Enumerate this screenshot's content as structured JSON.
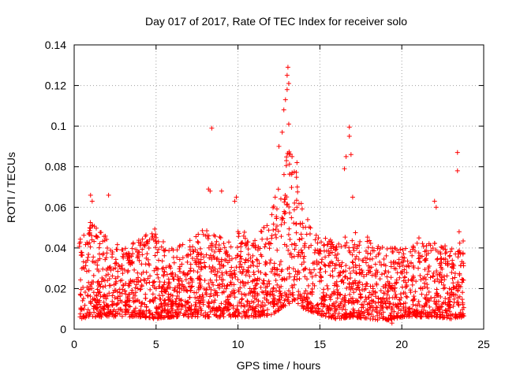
{
  "chart_data": {
    "type": "scatter",
    "title": "Day 017 of 2017, Rate Of TEC Index for receiver solo",
    "xlabel": "GPS time / hours",
    "ylabel": "ROTI / TECUs",
    "xlim": [
      0,
      25
    ],
    "ylim": [
      0,
      0.14
    ],
    "xticks": [
      "0",
      "5",
      "10",
      "15",
      "20",
      "25"
    ],
    "yticks": [
      "0",
      "0.02",
      "0.04",
      "0.06",
      "0.08",
      "0.1",
      "0.12",
      "0.14"
    ],
    "grid": true,
    "marker": "+",
    "color": "#ff0000",
    "series": [
      {
        "name": "ROTI",
        "envelope": {
          "x": [
            0.3,
            1,
            2,
            3,
            4,
            5,
            6,
            7,
            8,
            9,
            10,
            11,
            12,
            12.5,
            13,
            13.5,
            14,
            15,
            16,
            17,
            18,
            19,
            20,
            21,
            22,
            23,
            23.8
          ],
          "low": [
            0.005,
            0.006,
            0.006,
            0.006,
            0.006,
            0.005,
            0.006,
            0.006,
            0.006,
            0.006,
            0.006,
            0.006,
            0.007,
            0.009,
            0.012,
            0.013,
            0.01,
            0.007,
            0.005,
            0.006,
            0.005,
            0.004,
            0.006,
            0.006,
            0.006,
            0.005,
            0.006
          ],
          "high": [
            0.045,
            0.055,
            0.045,
            0.04,
            0.045,
            0.05,
            0.04,
            0.045,
            0.05,
            0.045,
            0.05,
            0.045,
            0.055,
            0.075,
            0.095,
            0.08,
            0.06,
            0.045,
            0.045,
            0.05,
            0.045,
            0.04,
            0.04,
            0.045,
            0.045,
            0.04,
            0.045
          ]
        },
        "outliers": [
          {
            "x": 8.4,
            "y": 0.099
          },
          {
            "x": 8.2,
            "y": 0.069
          },
          {
            "x": 8.3,
            "y": 0.068
          },
          {
            "x": 9.0,
            "y": 0.068
          },
          {
            "x": 9.8,
            "y": 0.063
          },
          {
            "x": 9.9,
            "y": 0.065
          },
          {
            "x": 1.0,
            "y": 0.066
          },
          {
            "x": 1.1,
            "y": 0.063
          },
          {
            "x": 2.1,
            "y": 0.066
          },
          {
            "x": 12.5,
            "y": 0.09
          },
          {
            "x": 12.7,
            "y": 0.097
          },
          {
            "x": 12.8,
            "y": 0.108
          },
          {
            "x": 12.9,
            "y": 0.113
          },
          {
            "x": 13.0,
            "y": 0.118
          },
          {
            "x": 13.0,
            "y": 0.125
          },
          {
            "x": 13.05,
            "y": 0.129
          },
          {
            "x": 13.1,
            "y": 0.121
          },
          {
            "x": 13.1,
            "y": 0.101
          },
          {
            "x": 13.3,
            "y": 0.085
          },
          {
            "x": 13.6,
            "y": 0.082
          },
          {
            "x": 16.8,
            "y": 0.0995
          },
          {
            "x": 16.8,
            "y": 0.095
          },
          {
            "x": 16.6,
            "y": 0.085
          },
          {
            "x": 16.9,
            "y": 0.086
          },
          {
            "x": 16.5,
            "y": 0.079
          },
          {
            "x": 17.0,
            "y": 0.065
          },
          {
            "x": 22.0,
            "y": 0.063
          },
          {
            "x": 22.1,
            "y": 0.06
          },
          {
            "x": 23.4,
            "y": 0.087
          },
          {
            "x": 23.4,
            "y": 0.078
          },
          {
            "x": 23.5,
            "y": 0.048
          },
          {
            "x": 19.4,
            "y": 0.003
          }
        ]
      }
    ]
  }
}
